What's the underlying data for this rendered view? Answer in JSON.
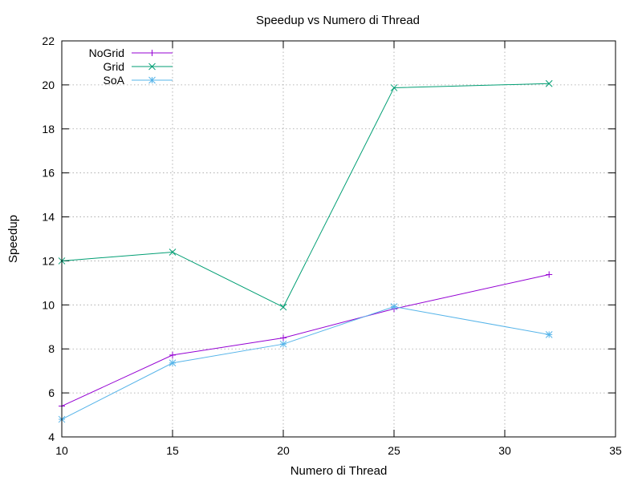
{
  "chart_data": {
    "type": "line",
    "title": "Speedup vs Numero di Thread",
    "xlabel": "Numero di Thread",
    "ylabel": "Speedup",
    "xlim": [
      10,
      35
    ],
    "ylim": [
      4,
      22
    ],
    "xticks": [
      10,
      15,
      20,
      25,
      30,
      35
    ],
    "yticks": [
      4,
      6,
      8,
      10,
      12,
      14,
      16,
      18,
      20,
      22
    ],
    "grid": true,
    "legend_position": "top-left",
    "x": [
      10,
      15,
      20,
      25,
      32
    ],
    "series": [
      {
        "name": "NoGrid",
        "color": "#9400d3",
        "marker": "plus",
        "values": [
          5.4,
          7.72,
          8.5,
          9.82,
          11.38
        ]
      },
      {
        "name": "Grid",
        "color": "#009e73",
        "marker": "cross",
        "values": [
          12.0,
          12.4,
          9.9,
          19.87,
          20.06
        ]
      },
      {
        "name": "SoA",
        "color": "#56b4e9",
        "marker": "star",
        "values": [
          4.8,
          7.36,
          8.22,
          9.92,
          8.65
        ]
      }
    ]
  }
}
